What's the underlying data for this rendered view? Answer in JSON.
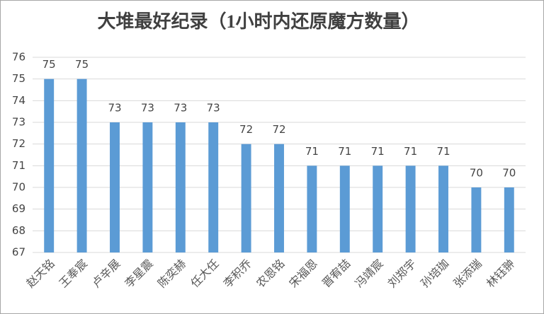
{
  "chart_data": {
    "type": "bar",
    "title": "大堆最好纪录（1小时内还原魔方数量）",
    "categories": [
      "赵天铭",
      "王奉宸",
      "卢辛展",
      "李星震",
      "陈奕赫",
      "任大任",
      "李积乔",
      "农恩铭",
      "宋福恩",
      "晋宥喆",
      "冯靖宸",
      "刘郑宇",
      "孙培珈",
      "张添瑞",
      "林钰翀"
    ],
    "values": [
      75,
      75,
      73,
      73,
      73,
      73,
      72,
      72,
      71,
      71,
      71,
      71,
      71,
      70,
      70
    ],
    "color": "#5b9bd5",
    "ylim": [
      67,
      76
    ],
    "yticks": [
      67,
      68,
      69,
      70,
      71,
      72,
      73,
      74,
      75,
      76
    ],
    "grid": true
  }
}
